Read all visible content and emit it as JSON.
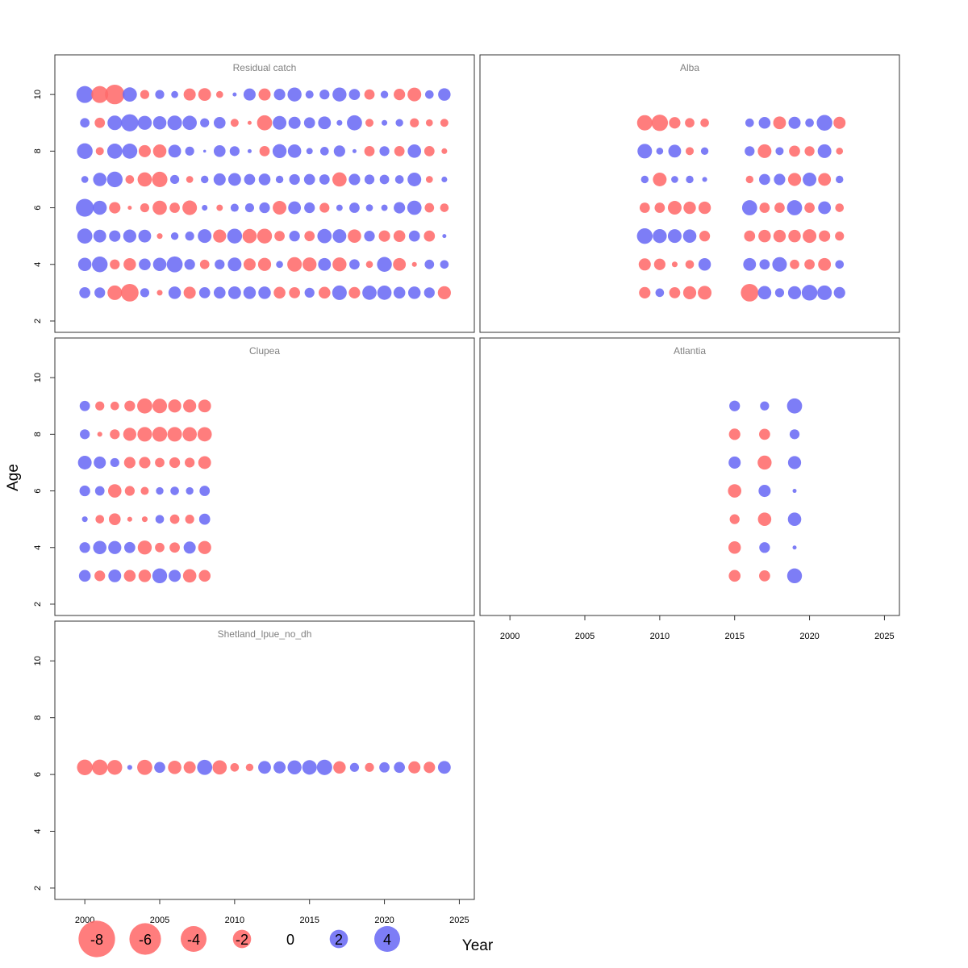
{
  "chart_data": {
    "type": "scatter",
    "subtype": "bubble residual plot",
    "xlabel": "Year",
    "ylabel": "Age",
    "xlim": [
      1998,
      2026
    ],
    "ylim": [
      1.6,
      11.4
    ],
    "xticks": [
      2000,
      2005,
      2010,
      2015,
      2020,
      2025
    ],
    "yticks": [
      2,
      4,
      6,
      8,
      10
    ],
    "colors": {
      "positive": "#6b6bf5",
      "negative": "#ff6b6b"
    },
    "size_scale_radius_per_unit": 5.6,
    "panels": [
      {
        "title": "Residual catch",
        "years": [
          2000,
          2001,
          2002,
          2003,
          2004,
          2005,
          2006,
          2007,
          2008,
          2009,
          2010,
          2011,
          2012,
          2013,
          2014,
          2015,
          2016,
          2017,
          2018,
          2019,
          2020,
          2021,
          2022,
          2023,
          2024
        ],
        "ages": [
          10,
          9,
          8,
          7,
          6,
          5,
          4,
          3
        ],
        "residuals": [
          [
            3.5,
            -3.5,
            -4.7,
            2.5,
            -1.0,
            1.0,
            0.6,
            -1.8,
            -2.0,
            -0.6,
            0.2,
            1.8,
            -1.8,
            1.6,
            2.4,
            0.8,
            1.2,
            2.4,
            1.5,
            -1.3,
            0.7,
            -1.6,
            -2.3,
            0.9,
            1.9
          ],
          [
            1.1,
            -1.3,
            2.6,
            3.6,
            2.4,
            2.2,
            2.6,
            2.5,
            1.0,
            1.7,
            -0.8,
            -0.2,
            -2.8,
            2.3,
            1.8,
            1.5,
            2.0,
            0.4,
            2.8,
            -0.8,
            0.4,
            0.7,
            -1.0,
            -0.6,
            -0.8
          ],
          [
            3.0,
            -0.8,
            2.8,
            2.8,
            -1.8,
            -2.2,
            2.0,
            1.0,
            0.1,
            1.7,
            1.2,
            0.2,
            -1.3,
            2.4,
            2.2,
            0.5,
            0.9,
            1.6,
            0.2,
            -1.3,
            1.2,
            -1.3,
            2.2,
            -1.3,
            -0.4
          ],
          [
            0.6,
            2.2,
            3.0,
            -0.9,
            -2.5,
            -2.9,
            1.0,
            -0.6,
            0.7,
            1.8,
            2.0,
            1.5,
            1.7,
            0.7,
            1.4,
            1.5,
            1.3,
            -2.5,
            1.6,
            1.2,
            1.1,
            0.9,
            2.3,
            -0.6,
            0.4
          ],
          [
            3.9,
            2.4,
            -1.6,
            -0.2,
            -1.0,
            -2.5,
            -1.3,
            -2.6,
            0.4,
            -0.5,
            0.8,
            1.0,
            1.4,
            -2.3,
            2.0,
            1.4,
            -1.2,
            0.5,
            1.3,
            0.6,
            0.5,
            1.6,
            2.5,
            -1.1,
            -0.9
          ],
          [
            2.8,
            2.0,
            1.6,
            2.1,
            2.0,
            -0.4,
            0.7,
            1.0,
            2.3,
            -2.1,
            2.7,
            -2.5,
            -2.7,
            -1.3,
            1.4,
            -1.3,
            2.5,
            2.3,
            -2.2,
            1.4,
            -1.6,
            -1.7,
            1.5,
            -1.5,
            0.2
          ],
          [
            2.2,
            3.0,
            -1.2,
            -1.9,
            1.7,
            2.2,
            3.1,
            1.4,
            -1.1,
            1.2,
            2.3,
            -1.8,
            -2.1,
            0.6,
            -2.6,
            -2.4,
            2.0,
            -2.4,
            1.3,
            -0.6,
            2.7,
            -2.0,
            -0.3,
            1.1,
            0.9
          ],
          [
            1.5,
            1.4,
            -2.6,
            -3.8,
            1.0,
            -0.4,
            1.9,
            -1.8,
            1.5,
            1.7,
            2.0,
            1.9,
            1.9,
            -1.7,
            -1.5,
            1.2,
            -1.7,
            2.6,
            -1.6,
            2.5,
            2.5,
            1.7,
            1.9,
            1.4,
            -2.1
          ]
        ]
      },
      {
        "title": "Alba",
        "years": [
          2009,
          2010,
          2011,
          2012,
          2013,
          2016,
          2017,
          2018,
          2019,
          2020,
          2021,
          2022
        ],
        "ages": [
          9,
          8,
          7,
          6,
          5,
          4,
          3
        ],
        "residuals": [
          [
            -2.9,
            -3.3,
            -1.6,
            -1.1,
            -0.9,
            0.9,
            1.7,
            -2.0,
            1.8,
            0.9,
            3.0,
            -1.8
          ],
          [
            2.6,
            0.6,
            2.0,
            -0.8,
            0.7,
            1.2,
            -2.3,
            0.8,
            -1.5,
            -1.2,
            2.3,
            -0.6
          ],
          [
            0.7,
            -2.3,
            0.6,
            0.7,
            0.3,
            -0.7,
            1.5,
            1.6,
            -2.1,
            2.3,
            -2.0,
            0.7
          ],
          [
            -1.3,
            -1.3,
            -2.3,
            -1.9,
            -1.9,
            2.8,
            -1.3,
            -1.3,
            2.8,
            -1.3,
            2.0,
            -0.9
          ],
          [
            3.0,
            2.4,
            2.3,
            2.2,
            -1.4,
            -1.5,
            -1.9,
            -1.9,
            -1.9,
            -2.3,
            -1.6,
            -1.0
          ],
          [
            -1.8,
            -1.6,
            -0.4,
            -0.9,
            1.9,
            2.0,
            1.3,
            2.6,
            -1.1,
            -1.3,
            -2.0,
            0.9
          ],
          [
            -1.6,
            0.9,
            -1.5,
            -2.1,
            -2.3,
            -3.8,
            2.2,
            1.0,
            2.1,
            3.0,
            2.6,
            1.6
          ]
        ]
      },
      {
        "title": "Clupea",
        "years": [
          2000,
          2001,
          2002,
          2003,
          2004,
          2005,
          2006,
          2007,
          2008
        ],
        "ages": [
          9,
          8,
          7,
          6,
          5,
          4,
          3
        ],
        "residuals": [
          [
            1.3,
            -1.0,
            -0.9,
            -1.4,
            -2.8,
            -2.6,
            -2.1,
            -2.1,
            -2.0
          ],
          [
            1.2,
            -0.3,
            -1.2,
            -2.1,
            -2.6,
            -2.7,
            -2.6,
            -2.5,
            -2.5
          ],
          [
            2.3,
            1.8,
            1.0,
            -1.6,
            -1.6,
            -1.1,
            -1.4,
            -1.2,
            -2.0
          ],
          [
            1.4,
            1.1,
            -2.2,
            -1.2,
            -0.8,
            0.7,
            0.9,
            0.7,
            1.3
          ],
          [
            0.4,
            -0.9,
            -1.7,
            -0.3,
            -0.4,
            0.9,
            -1.1,
            -1.0,
            1.5
          ],
          [
            1.4,
            2.2,
            2.1,
            1.5,
            -2.4,
            -1.1,
            -1.3,
            1.8,
            -2.1
          ],
          [
            1.7,
            -1.4,
            2.0,
            -1.7,
            -1.9,
            2.7,
            1.8,
            -2.2,
            -1.7
          ]
        ]
      },
      {
        "title": "Atlantia",
        "years": [
          2015,
          2017,
          2019
        ],
        "ages": [
          9,
          8,
          7,
          6,
          5,
          4,
          3
        ],
        "residuals": [
          [
            1.4,
            1.0,
            2.8
          ],
          [
            -1.6,
            -1.5,
            1.2
          ],
          [
            1.8,
            -2.4,
            2.1
          ],
          [
            -2.2,
            1.8,
            0.2
          ],
          [
            -1.2,
            -2.2,
            2.2
          ],
          [
            -1.9,
            1.4,
            0.2
          ],
          [
            -1.7,
            -1.5,
            2.7
          ]
        ]
      },
      {
        "title": "Shetland_lpue_no_dh",
        "years": [
          2000,
          2001,
          2002,
          2003,
          2004,
          2005,
          2006,
          2007,
          2008,
          2009,
          2010,
          2011,
          2012,
          2013,
          2014,
          2015,
          2016,
          2017,
          2018,
          2019,
          2020,
          2021,
          2022,
          2023,
          2024
        ],
        "ages": [
          6.25
        ],
        "residuals": [
          [
            -3.0,
            -3.0,
            -2.7,
            0.3,
            -2.8,
            1.5,
            -2.2,
            -1.8,
            2.8,
            -2.5,
            -0.9,
            -0.7,
            2.0,
            1.8,
            2.4,
            2.6,
            2.9,
            -1.9,
            1.0,
            -1.0,
            1.3,
            1.5,
            -1.8,
            -1.6,
            2.0
          ]
        ]
      }
    ],
    "legend": {
      "placement": "bottom-left",
      "values": [
        -8,
        -6,
        -4,
        -2,
        0,
        2,
        4
      ],
      "labels": [
        "-8",
        "-6",
        "-4",
        "-2",
        "0",
        "2",
        "4"
      ]
    }
  }
}
